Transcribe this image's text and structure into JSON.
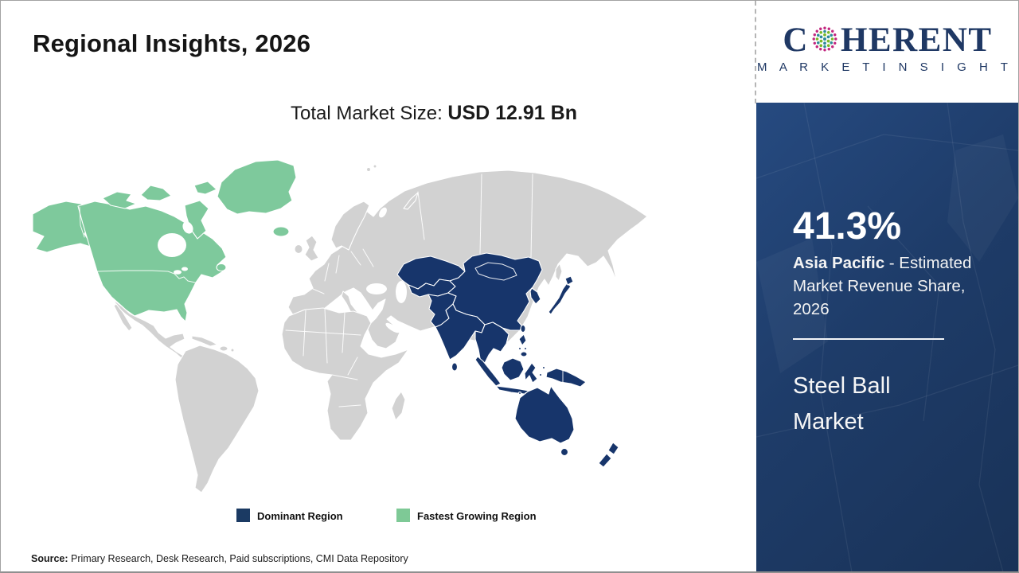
{
  "header": {
    "title": "Regional Insights, 2026"
  },
  "logo": {
    "word_start": "C",
    "word_end": "HERENT",
    "tagline": "M A R K E T   I N S I G H T S"
  },
  "market": {
    "label": "Total Market Size: ",
    "value": "USD 12.91 Bn"
  },
  "legend": {
    "items": [
      {
        "label": "Dominant Region",
        "color": "#1b3a63"
      },
      {
        "label": "Fastest Growing Region",
        "color": "#7ec996"
      }
    ]
  },
  "sidebar": {
    "share": "41.3%",
    "region": "Asia Pacific",
    "share_desc": " - Estimated Market Revenue Share, 2026",
    "market_name": "Steel Ball Market"
  },
  "source": {
    "label": "Source:",
    "text": " Primary Research, Desk Research, Paid subscriptions, CMI Data Repository"
  },
  "colors": {
    "dominant": "#17356b",
    "dominant_legend": "#1b3a63",
    "fastest": "#7ec99c",
    "fastest_legend": "#7ec996",
    "other_land": "#d2d2d2",
    "sidebar_bg": "#1e3c69",
    "logo_navy": "#1f3864"
  },
  "chart_data": {
    "type": "map",
    "title": "Regional Insights, 2026",
    "total_market_size": "USD 12.91 Bn",
    "market": "Steel Ball Market",
    "regions": [
      {
        "name": "Asia Pacific",
        "classification": "Dominant Region",
        "estimated_market_revenue_share_2026_pct": 41.3,
        "color": "#17356b"
      },
      {
        "name": "North America",
        "classification": "Fastest Growing Region",
        "color": "#7ec99c"
      },
      {
        "name": "Rest of World",
        "classification": "Not highlighted",
        "color": "#d2d2d2"
      }
    ],
    "legend_position": "bottom-center"
  }
}
